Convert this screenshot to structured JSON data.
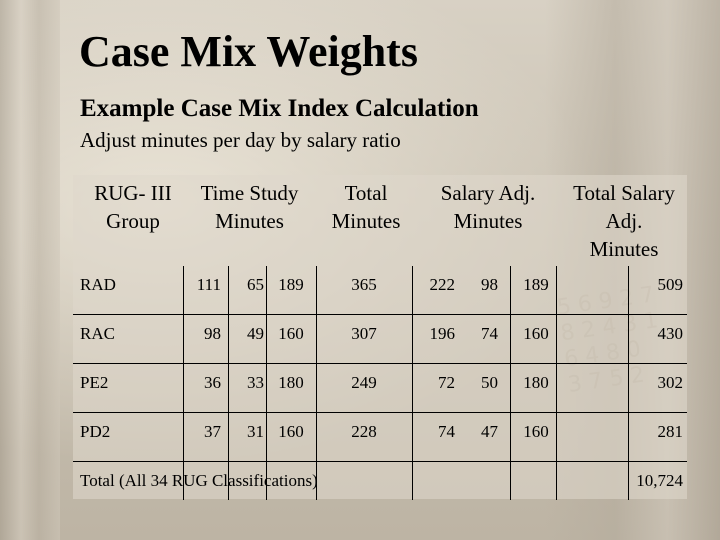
{
  "slide": {
    "title": "Case Mix Weights",
    "subtitle": "Example Case Mix Index Calculation",
    "caption": "Adjust minutes per day by salary ratio"
  },
  "table": {
    "headers": [
      "RUG- III\nGroup",
      "Time Study\nMinutes",
      "Total\nMinutes",
      "Salary Adj.\nMinutes",
      "Total Salary\nAdj.\nMinutes"
    ],
    "rows": [
      {
        "group": "RAD",
        "ts": [
          "111",
          "65",
          "189"
        ],
        "total": "365",
        "sa": [
          "222",
          "98",
          "189"
        ],
        "tsam": "509"
      },
      {
        "group": "RAC",
        "ts": [
          "98",
          "49",
          "160"
        ],
        "total": "307",
        "sa": [
          "196",
          "74",
          "160"
        ],
        "tsam": "430"
      },
      {
        "group": "PE2",
        "ts": [
          "36",
          "33",
          "180"
        ],
        "total": "249",
        "sa": [
          "72",
          "50",
          "180"
        ],
        "tsam": "302"
      },
      {
        "group": "PD2",
        "ts": [
          "37",
          "31",
          "160"
        ],
        "total": "228",
        "sa": [
          "74",
          "47",
          "160"
        ],
        "tsam": "281"
      }
    ],
    "total_label": "Total (All 34 RUG Classifications)",
    "total_value": "10,724"
  },
  "colors": {
    "background": "#c9c1b2",
    "text": "#000000",
    "grid": "#000000"
  }
}
